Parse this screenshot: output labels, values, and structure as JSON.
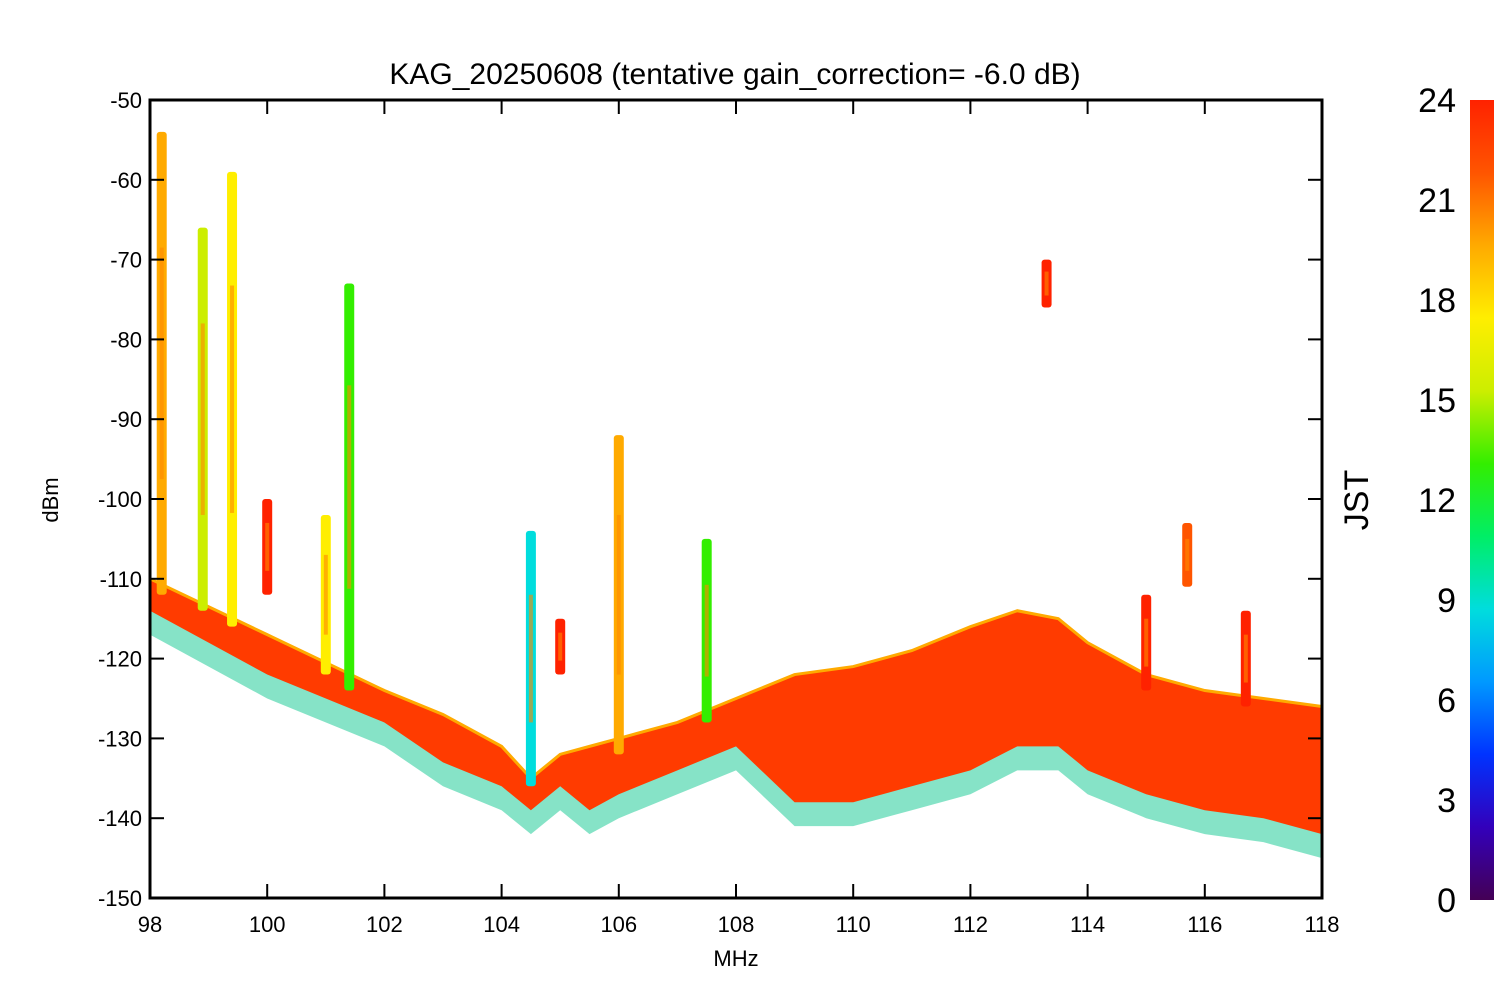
{
  "chart_data": {
    "type": "scatter",
    "title": "KAG_20250608 (tentative gain_correction= -6.0 dB)",
    "xlabel": "MHz",
    "ylabel": "dBm",
    "xlim": [
      98,
      118
    ],
    "ylim": [
      -150,
      -50
    ],
    "x_ticks": [
      "98",
      "100",
      "102",
      "104",
      "106",
      "108",
      "110",
      "112",
      "114",
      "116",
      "118"
    ],
    "y_ticks": [
      "-50",
      "-60",
      "-70",
      "-80",
      "-90",
      "-100",
      "-110",
      "-120",
      "-130",
      "-140",
      "-150"
    ],
    "grid": false,
    "colorbar": {
      "label": "JST",
      "range": [
        0,
        24
      ],
      "ticks": [
        "24",
        "21",
        "18",
        "15",
        "12",
        "9",
        "6",
        "3",
        "0"
      ],
      "colormap": "rainbow",
      "stops": [
        "#440055",
        "#3300bb",
        "#0033ff",
        "#0099ff",
        "#00dddd",
        "#00ee66",
        "#33ee00",
        "#ccee00",
        "#ffee00",
        "#ffaa00",
        "#ff5500",
        "#ff2200"
      ]
    },
    "noise_floor_series": [
      {
        "name": "",
        "x": [
          98,
          100,
          102,
          103,
          104,
          104.5,
          105,
          105.5,
          106,
          107,
          108,
          109,
          110,
          111,
          112,
          112.8,
          113.5,
          114,
          115,
          116,
          117,
          118
        ],
        "y_top": [
          -110,
          -117,
          -124,
          -127,
          -131,
          -135,
          -132,
          -131,
          -130,
          -128,
          -125,
          -122,
          -121,
          -119,
          -116,
          -114,
          -115,
          -118,
          -122,
          -124,
          -125,
          -126
        ],
        "y_bottom": [
          -114,
          -122,
          -128,
          -133,
          -136,
          -139,
          -136,
          -139,
          -137,
          -134,
          -131,
          -138,
          -138,
          -136,
          -134,
          -131,
          -131,
          -134,
          -137,
          -139,
          -140,
          -142
        ]
      }
    ],
    "signals": [
      {
        "x": 98.2,
        "y_top": -54,
        "y_bottom": -112,
        "hour": 20
      },
      {
        "x": 98.9,
        "y_top": -66,
        "y_bottom": -114,
        "hour": 16
      },
      {
        "x": 99.4,
        "y_top": -59,
        "y_bottom": -116,
        "hour": 17
      },
      {
        "x": 100.0,
        "y_top": -100,
        "y_bottom": -112,
        "hour": 23
      },
      {
        "x": 101.4,
        "y_top": -73,
        "y_bottom": -124,
        "hour": 14
      },
      {
        "x": 101.0,
        "y_top": -102,
        "y_bottom": -122,
        "hour": 18
      },
      {
        "x": 104.5,
        "y_top": -104,
        "y_bottom": -136,
        "hour": 8
      },
      {
        "x": 105.0,
        "y_top": -115,
        "y_bottom": -122,
        "hour": 23
      },
      {
        "x": 106.0,
        "y_top": -92,
        "y_bottom": -132,
        "hour": 20
      },
      {
        "x": 107.5,
        "y_top": -105,
        "y_bottom": -128,
        "hour": 12
      },
      {
        "x": 113.3,
        "y_top": -70,
        "y_bottom": -76,
        "hour": 23
      },
      {
        "x": 115.0,
        "y_top": -112,
        "y_bottom": -124,
        "hour": 23
      },
      {
        "x": 115.7,
        "y_top": -103,
        "y_bottom": -111,
        "hour": 21
      },
      {
        "x": 116.7,
        "y_top": -114,
        "y_bottom": -126,
        "hour": 23
      }
    ]
  }
}
